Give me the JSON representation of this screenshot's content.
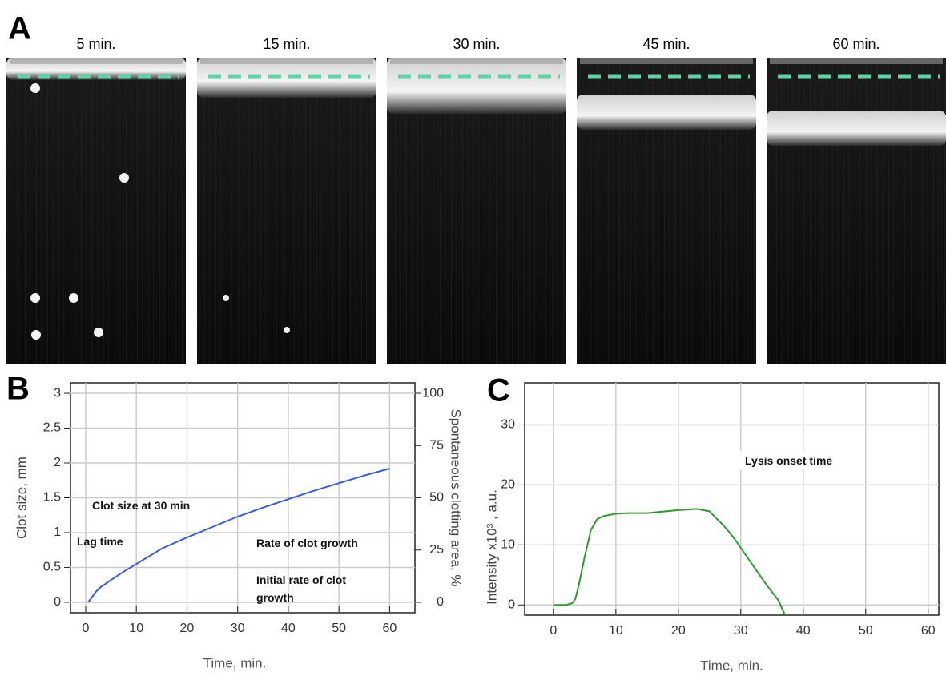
{
  "panel_labels": [
    "A",
    "B",
    "C"
  ],
  "frames": [
    "5 min.",
    "15 min.",
    "30 min.",
    "45 min.",
    "60 min."
  ],
  "chart_data": [
    {
      "type": "line",
      "x_label": "Time, min.",
      "y_label": "Clot size, mm",
      "y2_label": "Spontaneous clotting area, %",
      "x": [
        0.5,
        1,
        2,
        3,
        4,
        5,
        7.5,
        10,
        12.5,
        15,
        17.5,
        20,
        25,
        30,
        35,
        40,
        45,
        50,
        55,
        60
      ],
      "series": [
        {
          "color": "#3b5bdb",
          "values": [
            0,
            0.05,
            0.15,
            0.22,
            0.27,
            0.32,
            0.44,
            0.55,
            0.66,
            0.77,
            0.85,
            0.93,
            1.08,
            1.23,
            1.36,
            1.48,
            1.6,
            1.71,
            1.82,
            1.92
          ]
        }
      ],
      "xlim": [
        -3,
        65
      ],
      "xticks": [
        0,
        10,
        20,
        30,
        40,
        50,
        60
      ],
      "ylim": [
        -0.15,
        3.15
      ],
      "yticks": [
        0,
        0.5,
        1,
        1.5,
        2,
        2.5,
        3
      ],
      "y2lim": [
        -5,
        105
      ],
      "y2ticks": [
        0,
        25,
        50,
        75,
        100
      ],
      "grid": true,
      "annotations": [
        "Clot size at 30 min",
        "Lag time",
        "Rate of clot growth",
        "Initial rate of clot growth"
      ]
    },
    {
      "type": "line",
      "x_label": "Time, min.",
      "y_label": "Intensity x10³ , a.u.",
      "x": [
        0,
        2,
        3,
        3.5,
        4,
        5,
        6,
        7,
        8,
        10,
        12,
        15,
        18,
        20,
        23,
        25,
        26,
        27,
        28,
        29,
        30,
        32,
        34,
        36,
        37
      ],
      "series": [
        {
          "color": "#2e9a2e",
          "values": [
            0,
            0,
            0.3,
            1,
            3,
            8,
            12.5,
            14.3,
            14.8,
            15.2,
            15.3,
            15.3,
            15.6,
            15.8,
            16,
            15.6,
            14.5,
            13.5,
            12.3,
            11,
            9.5,
            6.5,
            3.5,
            0.8,
            -1.5
          ]
        }
      ],
      "xlim": [
        -4.6,
        61.7
      ],
      "xticks": [
        0,
        10,
        20,
        30,
        40,
        50,
        60
      ],
      "ylim": [
        -1.7,
        37
      ],
      "yticks": [
        0,
        10,
        20,
        30
      ],
      "grid": true,
      "annotations": [
        "Lysis onset time"
      ]
    }
  ]
}
